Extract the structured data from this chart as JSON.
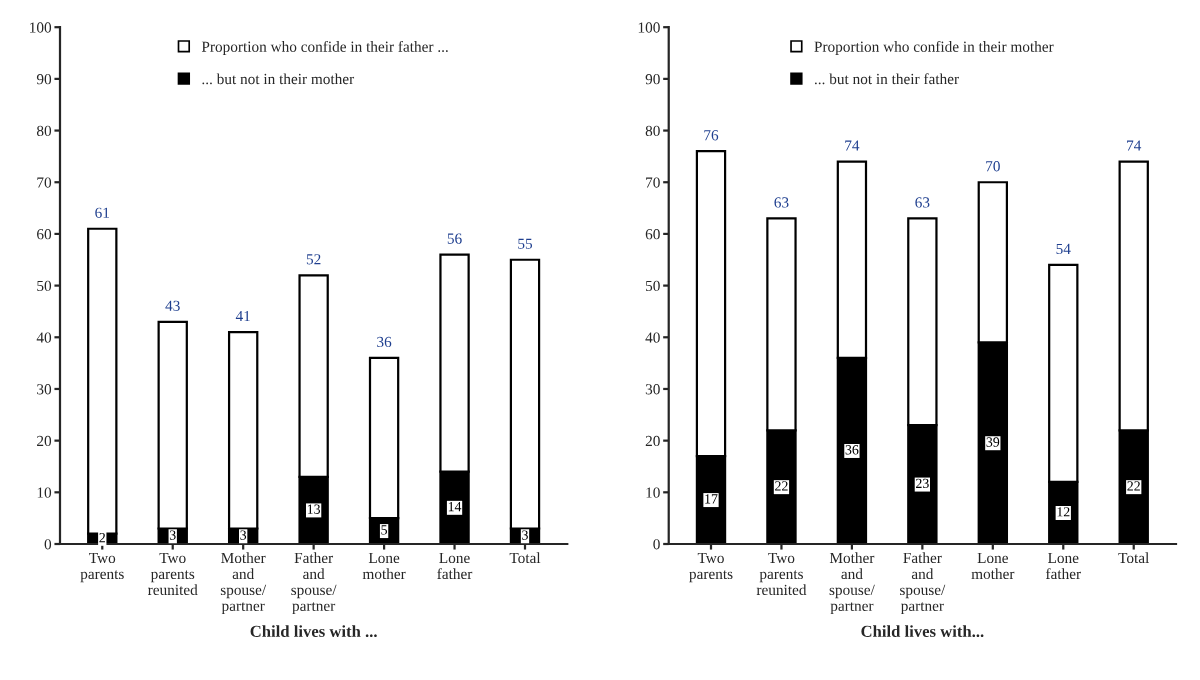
{
  "chart_data": [
    {
      "type": "bar",
      "stacked": true,
      "xlabel": "Child lives with ...",
      "categories": [
        "Two parents",
        "Two parents reunited",
        "Mother and spouse/ partner",
        "Father and spouse/ partner",
        "Lone mother",
        "Lone father",
        "Total"
      ],
      "series": [
        {
          "name": "... but not in their mother",
          "color": "#000000",
          "values": [
            2,
            3,
            3,
            13,
            5,
            14,
            3
          ],
          "value_labels": [
            "2",
            "3",
            "3",
            "13",
            "5",
            "14",
            "3"
          ]
        },
        {
          "name": "Proportion who confide in their father ...",
          "color": "#ffffff",
          "values": [
            59,
            40,
            38,
            39,
            31,
            42,
            52
          ]
        }
      ],
      "totals": [
        "61",
        "43",
        "41",
        "52",
        "36",
        "56",
        "55"
      ],
      "ylim": [
        0,
        100
      ],
      "yticks": [
        0,
        10,
        20,
        30,
        40,
        50,
        60,
        70,
        80,
        90,
        100
      ],
      "legend": "top",
      "grid": false
    },
    {
      "type": "bar",
      "stacked": true,
      "xlabel": "Child lives with...",
      "categories": [
        "Two parents",
        "Two parents reunited",
        "Mother and spouse/ partner",
        "Father and spouse/ partner",
        "Lone mother",
        "Lone father",
        "Total"
      ],
      "series": [
        {
          "name": "... but not in their father",
          "color": "#000000",
          "values": [
            17,
            22,
            36,
            23,
            39,
            12,
            22
          ],
          "value_labels": [
            "17",
            "22",
            "36",
            "23",
            "39",
            "12",
            "22"
          ]
        },
        {
          "name": "Proportion who confide in their mother",
          "color": "#ffffff",
          "values": [
            59,
            41,
            38,
            40,
            31,
            42,
            52
          ]
        }
      ],
      "totals": [
        "76",
        "63",
        "74",
        "63",
        "70",
        "54",
        "74"
      ],
      "ylim": [
        0,
        100
      ],
      "yticks": [
        0,
        10,
        20,
        30,
        40,
        50,
        60,
        70,
        80,
        90,
        100
      ],
      "legend": "top",
      "grid": false
    }
  ]
}
